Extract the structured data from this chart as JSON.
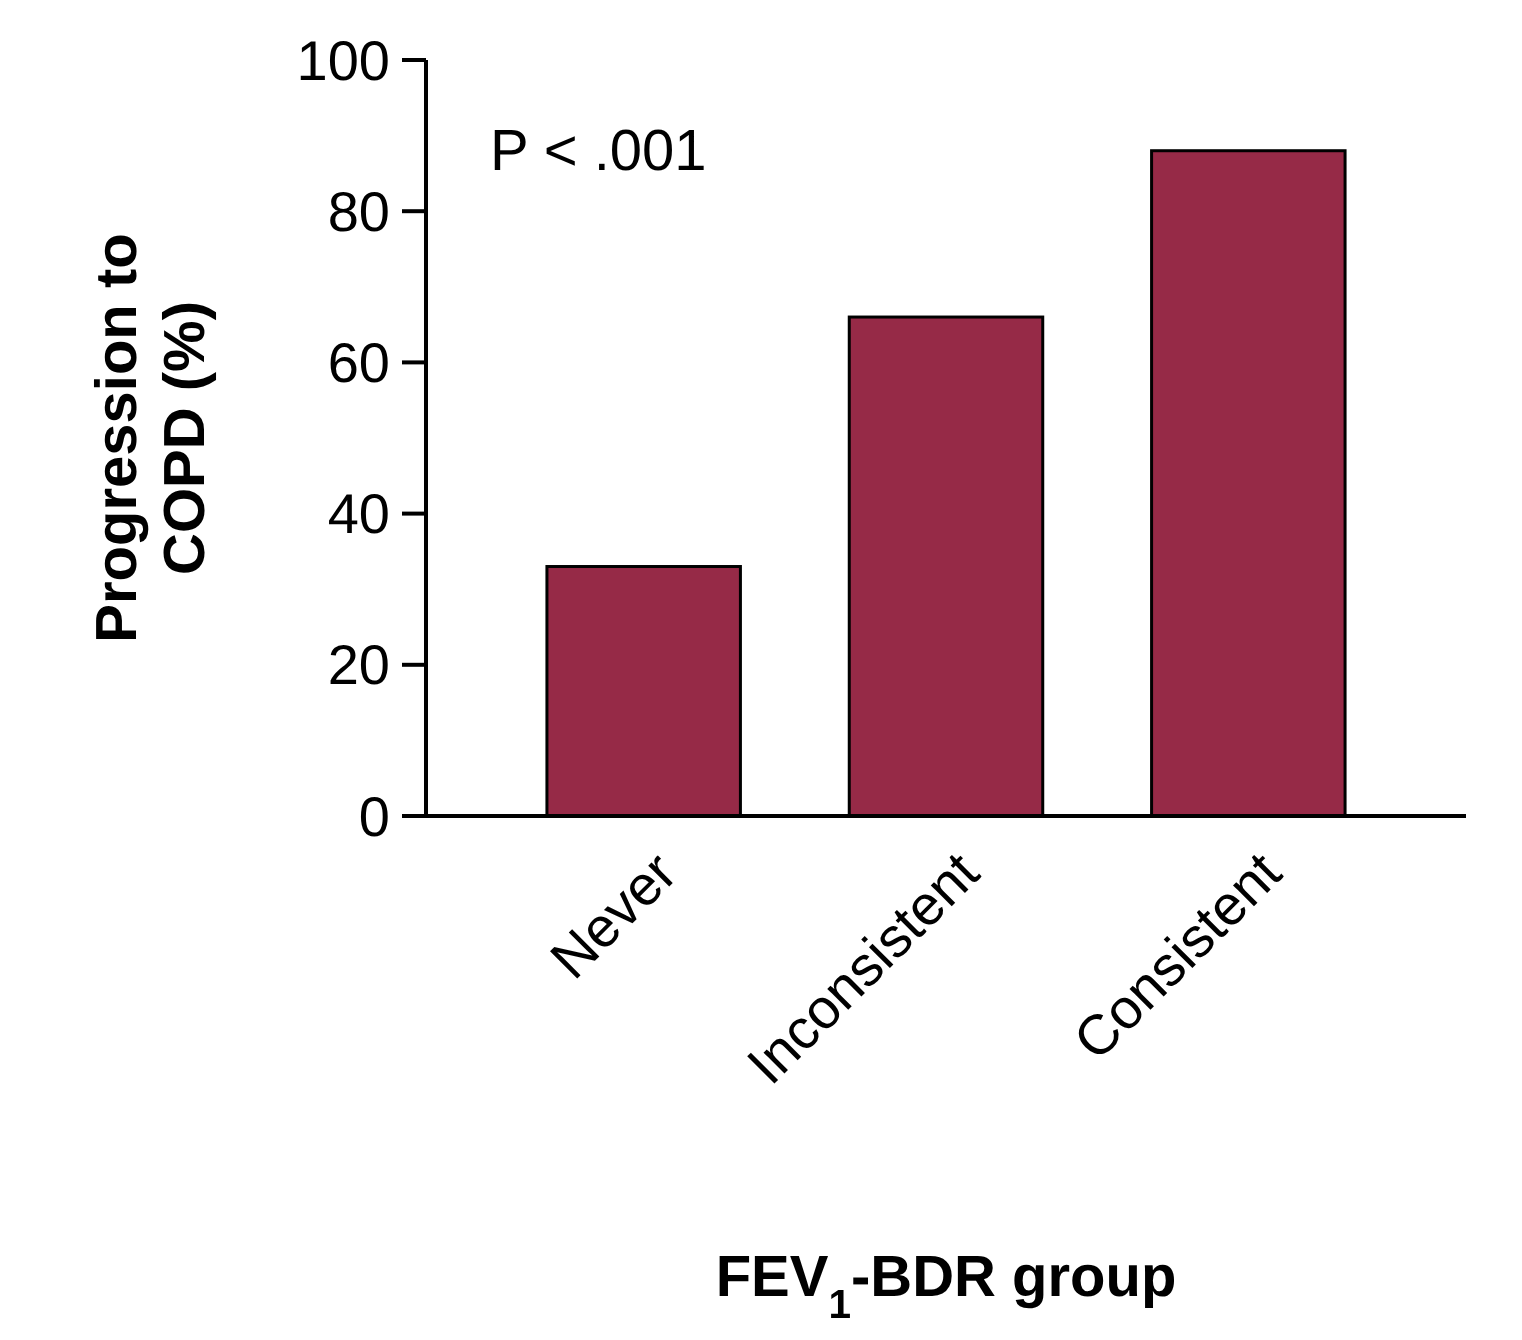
{
  "chart_data": {
    "type": "bar",
    "categories": [
      "Never",
      "Inconsistent",
      "Consistent"
    ],
    "values": [
      33,
      66,
      88
    ],
    "color": "#962a47",
    "ylim": [
      0,
      100
    ],
    "yticks": [
      0,
      20,
      40,
      60,
      80,
      100
    ],
    "ylabel": "Progression to\nCOPD (%)",
    "xlabel": "FEV$_{1}$-BDR group",
    "annotations": [
      "P < .001"
    ]
  }
}
